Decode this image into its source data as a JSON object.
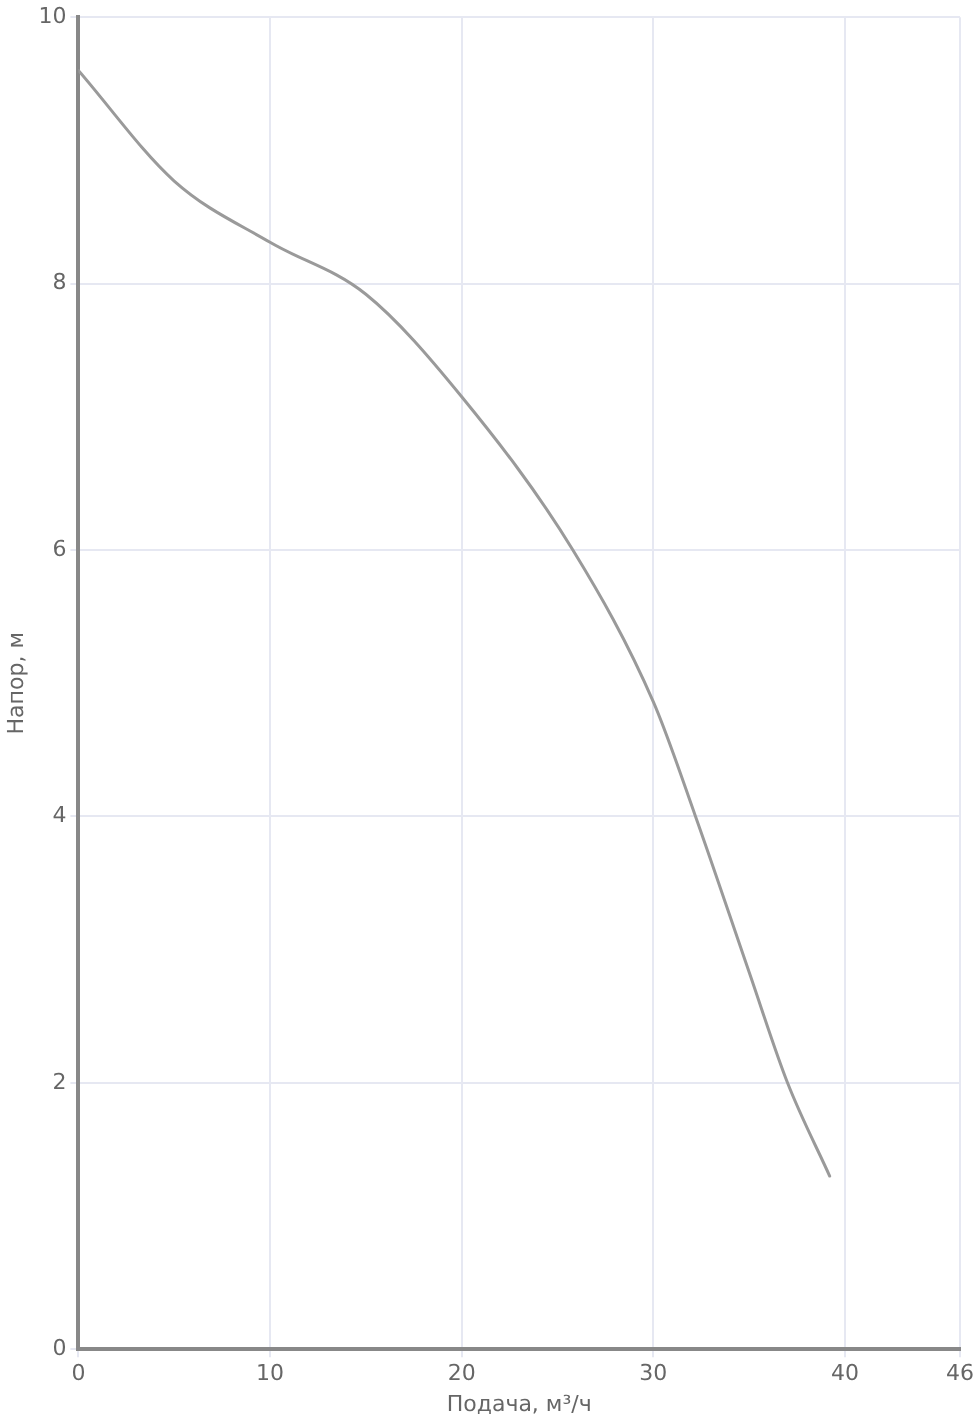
{
  "chart_data": {
    "type": "line",
    "xlabel": "Подача, м³/ч",
    "ylabel": "Напор, м",
    "xlim": [
      0,
      46
    ],
    "xticks": [
      0,
      10,
      20,
      30,
      40,
      46
    ],
    "ylim": [
      0,
      10
    ],
    "yticks": [
      0,
      2,
      4,
      6,
      8,
      10
    ],
    "grid": true,
    "marker": "none",
    "series": [
      {
        "color": "#9a9a9a",
        "x": [
          0,
          5,
          10,
          15,
          20,
          25.8,
          30,
          32.2,
          35,
          37,
          39.2
        ],
        "values": [
          9.6,
          8.77,
          8.31,
          7.92,
          7.15,
          6,
          4.86,
          4,
          2.83,
          2,
          1.3
        ]
      }
    ]
  }
}
